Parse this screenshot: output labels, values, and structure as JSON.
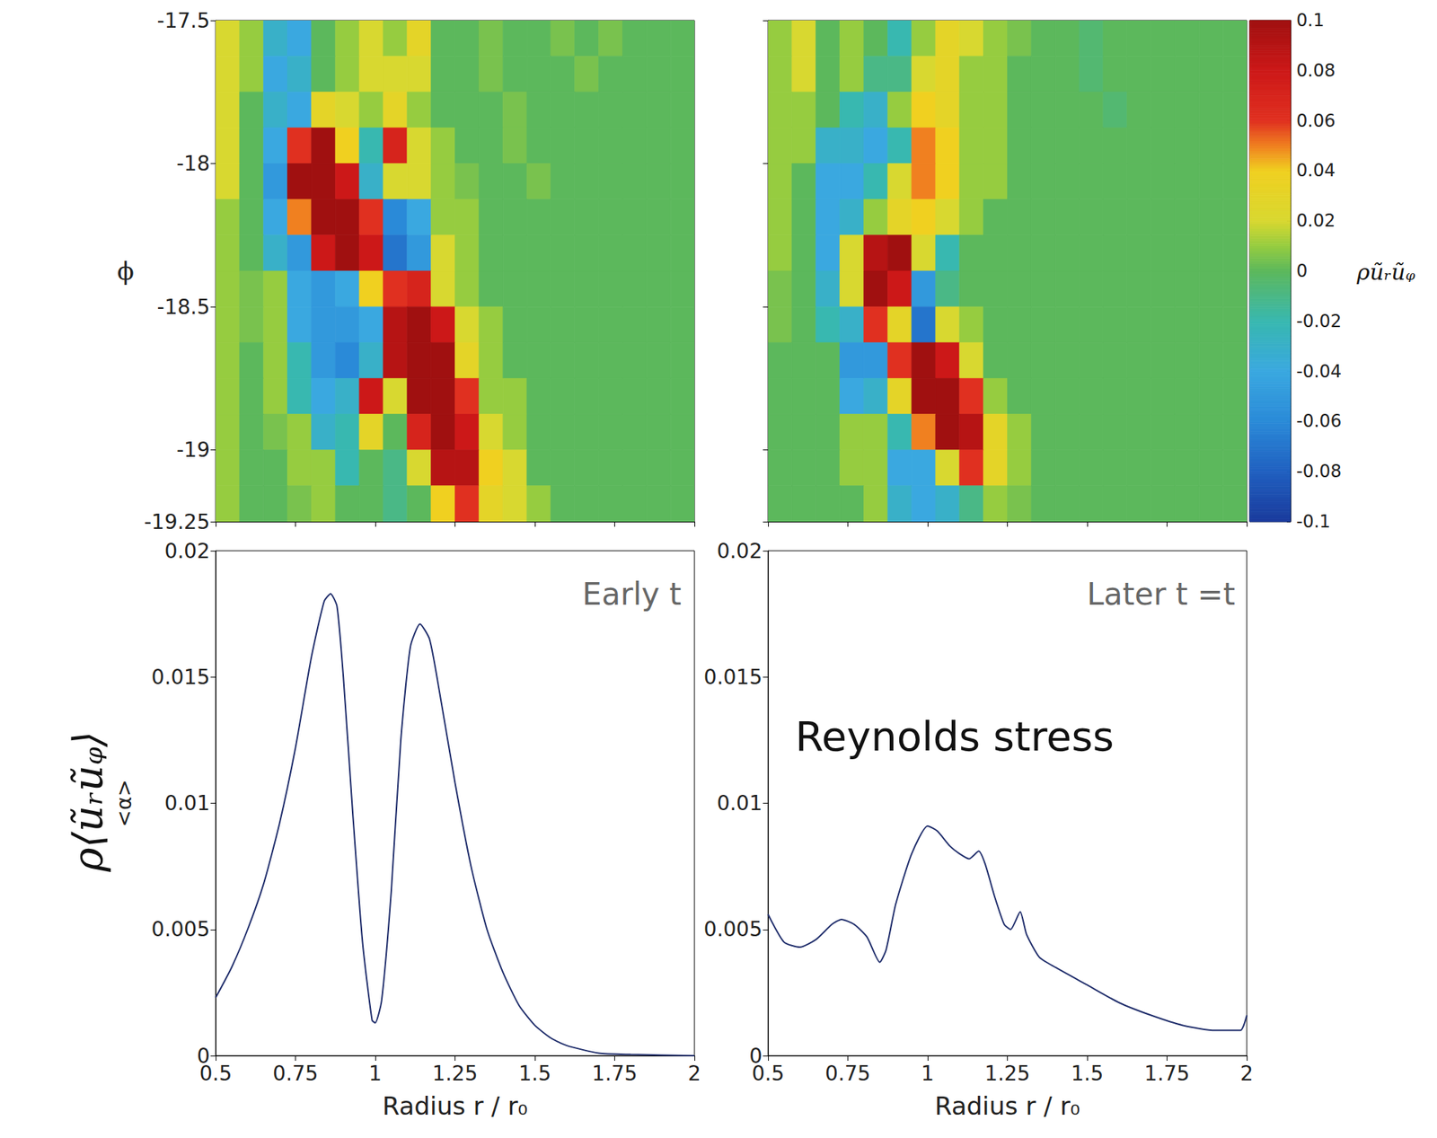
{
  "chart_data": [
    {
      "type": "heatmap",
      "ylabel": "ϕ",
      "tick_labels": "y",
      "xlim": [
        0.5,
        2
      ],
      "ylim": [
        -19.25,
        -17.5
      ],
      "xticks": [
        0.5,
        0.75,
        1,
        1.25,
        1.5,
        1.75,
        2
      ],
      "yticks": [
        -17.5,
        -18,
        -18.5,
        -19,
        -19.25
      ],
      "r_edges": [
        0.5,
        0.575,
        0.65,
        0.725,
        0.8,
        0.875,
        0.95,
        1.025,
        1.1,
        1.175,
        1.25,
        1.325,
        1.4,
        1.475,
        1.55,
        1.625,
        1.7,
        1.775,
        1.85,
        1.925,
        2.0
      ],
      "phi_edges": [
        -17.5,
        -17.625,
        -17.75,
        -17.875,
        -18,
        -18.125,
        -18.25,
        -18.375,
        -18.5,
        -18.625,
        -18.75,
        -18.875,
        -19,
        -19.125,
        -19.25
      ],
      "values": [
        [
          0.02,
          0.01,
          -0.03,
          -0.04,
          0,
          0.01,
          0.02,
          0.01,
          0.03,
          0,
          0,
          0.005,
          0,
          0,
          0.005,
          0,
          0.005,
          0,
          0,
          0
        ],
        [
          0.02,
          0.01,
          -0.04,
          -0.03,
          0,
          0.01,
          0.02,
          0.02,
          0.02,
          0,
          0,
          0.005,
          0,
          0,
          0,
          0.005,
          0,
          0,
          0,
          0
        ],
        [
          0.02,
          0,
          -0.03,
          -0.04,
          0.03,
          0.02,
          0.01,
          0.03,
          0.01,
          0,
          0,
          0,
          0.005,
          0,
          0,
          0,
          0,
          0,
          0,
          0
        ],
        [
          0.02,
          0,
          -0.04,
          0.06,
          0.1,
          0.04,
          -0.02,
          0.07,
          0.02,
          0.01,
          0,
          0,
          0.005,
          0,
          0,
          0,
          0,
          0,
          0,
          0
        ],
        [
          0.02,
          0,
          -0.05,
          0.1,
          0.1,
          0.08,
          -0.03,
          0.02,
          0.02,
          0.01,
          0.005,
          0,
          0,
          0.005,
          0,
          0,
          0,
          0,
          0,
          0
        ],
        [
          0.01,
          0,
          -0.04,
          0.05,
          0.1,
          0.1,
          0.06,
          -0.06,
          -0.04,
          0.01,
          0.01,
          0,
          0,
          0,
          0,
          0,
          0,
          0,
          0,
          0
        ],
        [
          0.01,
          0,
          -0.03,
          -0.05,
          0.08,
          0.1,
          0.08,
          -0.07,
          -0.05,
          0.02,
          0.01,
          0,
          0,
          0,
          0,
          0,
          0,
          0,
          0,
          0
        ],
        [
          0.01,
          0.005,
          0.01,
          -0.04,
          -0.05,
          -0.04,
          0.04,
          0.06,
          0.07,
          0.02,
          0.01,
          0,
          0,
          0,
          0,
          0,
          0,
          0,
          0,
          0
        ],
        [
          0.01,
          0.005,
          0.01,
          -0.04,
          -0.05,
          -0.05,
          -0.04,
          0.09,
          0.1,
          0.08,
          0.02,
          0.01,
          0,
          0,
          0,
          0,
          0,
          0,
          0,
          0
        ],
        [
          0.01,
          0,
          0.01,
          -0.02,
          -0.05,
          -0.06,
          -0.03,
          0.09,
          0.1,
          0.1,
          0.03,
          0.01,
          0,
          0,
          0,
          0,
          0,
          0,
          0,
          0
        ],
        [
          0.01,
          0,
          0.01,
          -0.02,
          -0.04,
          -0.03,
          0.08,
          0.02,
          0.1,
          0.1,
          0.06,
          0.01,
          0.01,
          0,
          0,
          0,
          0,
          0,
          0,
          0
        ],
        [
          0.01,
          0,
          0.005,
          0.01,
          -0.03,
          -0.02,
          0.03,
          0,
          0.07,
          0.1,
          0.08,
          0.02,
          0.01,
          0,
          0,
          0,
          0,
          0,
          0,
          0
        ],
        [
          0.01,
          0,
          0,
          0.01,
          0.01,
          -0.02,
          0,
          -0.01,
          0.02,
          0.09,
          0.09,
          0.04,
          0.02,
          0,
          0,
          0,
          0,
          0,
          0,
          0
        ],
        [
          0.01,
          0,
          0,
          0.005,
          0.01,
          0,
          0,
          -0.01,
          0,
          0.04,
          0.06,
          0.03,
          0.02,
          0.01,
          0,
          0,
          0,
          0,
          0,
          0
        ]
      ]
    },
    {
      "type": "heatmap",
      "tick_labels": false,
      "xlim": [
        0.5,
        2
      ],
      "ylim": [
        -19.25,
        -17.5
      ],
      "xticks": [
        0.5,
        0.75,
        1,
        1.25,
        1.5,
        1.75,
        2
      ],
      "yticks": [
        -17.5,
        -18,
        -18.5,
        -19,
        -19.25
      ],
      "r_edges": [
        0.5,
        0.575,
        0.65,
        0.725,
        0.8,
        0.875,
        0.95,
        1.025,
        1.1,
        1.175,
        1.25,
        1.325,
        1.4,
        1.475,
        1.55,
        1.625,
        1.7,
        1.775,
        1.85,
        1.925,
        2.0
      ],
      "phi_edges": [
        -17.5,
        -17.625,
        -17.75,
        -17.875,
        -18,
        -18.125,
        -18.25,
        -18.375,
        -18.5,
        -18.625,
        -18.75,
        -18.875,
        -19,
        -19.125,
        -19.25
      ],
      "values": [
        [
          0.01,
          0.02,
          0,
          0.01,
          0,
          -0.02,
          0.01,
          0.03,
          0.02,
          0.01,
          0.005,
          0,
          0,
          -0.005,
          0,
          0,
          0,
          0,
          0,
          0
        ],
        [
          0.01,
          0.02,
          0,
          0.01,
          -0.01,
          -0.01,
          0.02,
          0.03,
          0.01,
          0.01,
          0,
          0,
          0,
          -0.005,
          0,
          0,
          0,
          0,
          0,
          0
        ],
        [
          0.01,
          0.01,
          0,
          -0.02,
          -0.03,
          0.01,
          0.04,
          0.03,
          0.01,
          0.01,
          0,
          0,
          0,
          0,
          -0.005,
          0,
          0,
          0,
          0,
          0
        ],
        [
          0.01,
          0.01,
          -0.03,
          -0.03,
          -0.04,
          -0.02,
          0.05,
          0.04,
          0.01,
          0.01,
          0,
          0,
          0,
          0,
          0,
          0,
          0,
          0,
          0,
          0
        ],
        [
          0.01,
          0,
          -0.04,
          -0.04,
          -0.02,
          0.02,
          0.05,
          0.04,
          0.01,
          0.01,
          0,
          0,
          0,
          0,
          0,
          0,
          0,
          0,
          0,
          0
        ],
        [
          0.01,
          0,
          -0.04,
          -0.03,
          0.01,
          0.03,
          0.04,
          0.02,
          0.01,
          0,
          0,
          0,
          0,
          0,
          0,
          0,
          0,
          0,
          0,
          0
        ],
        [
          0.01,
          0,
          -0.04,
          0.02,
          0.09,
          0.1,
          0.02,
          -0.02,
          0,
          0,
          0,
          0,
          0,
          0,
          0,
          0,
          0,
          0,
          0,
          0
        ],
        [
          0.005,
          0,
          -0.03,
          0.02,
          0.1,
          0.08,
          -0.05,
          -0.01,
          0,
          0,
          0,
          0,
          0,
          0,
          0,
          0,
          0,
          0,
          0,
          0
        ],
        [
          0.005,
          0,
          -0.02,
          -0.03,
          0.06,
          0.03,
          -0.07,
          0.02,
          0.01,
          0,
          0,
          0,
          0,
          0,
          0,
          0,
          0,
          0,
          0,
          0
        ],
        [
          0,
          0,
          0,
          -0.05,
          -0.05,
          0.06,
          0.1,
          0.08,
          0.02,
          0,
          0,
          0,
          0,
          0,
          0,
          0,
          0,
          0,
          0,
          0
        ],
        [
          0,
          0,
          0,
          -0.04,
          -0.03,
          0.03,
          0.1,
          0.1,
          0.06,
          0.01,
          0,
          0,
          0,
          0,
          0,
          0,
          0,
          0,
          0,
          0
        ],
        [
          0,
          0,
          0,
          0.01,
          0.01,
          -0.02,
          0.05,
          0.1,
          0.09,
          0.03,
          0.01,
          0,
          0,
          0,
          0,
          0,
          0,
          0,
          0,
          0
        ],
        [
          0,
          0,
          0,
          0.01,
          0.01,
          -0.04,
          -0.04,
          0.02,
          0.06,
          0.03,
          0.01,
          0,
          0,
          0,
          0,
          0,
          0,
          0,
          0,
          0
        ],
        [
          0,
          0,
          0,
          0,
          0.01,
          -0.03,
          -0.04,
          -0.03,
          -0.01,
          0.01,
          0.005,
          0,
          0,
          0,
          0,
          0,
          0,
          0,
          0,
          0
        ]
      ],
      "colorbar": {
        "range": [
          -0.1,
          0.1
        ],
        "ticks": [
          0.1,
          0.08,
          0.06,
          0.04,
          0.02,
          0,
          -0.02,
          -0.04,
          -0.06,
          -0.08,
          -0.1
        ],
        "label": "ρũᵣũᵩ"
      }
    },
    {
      "type": "line",
      "xlabel": "Radius r / r₀",
      "ylabel": "<α>",
      "color": "#1f2d6b",
      "annotations": [
        "Early t",
        "ρ⟨ũᵣũᵩ⟩"
      ],
      "xlim": [
        0.5,
        2
      ],
      "ylim": [
        0,
        0.02
      ],
      "xticks": [
        0.5,
        0.75,
        1,
        1.25,
        1.5,
        1.75,
        2
      ],
      "yticks": [
        0,
        0.005,
        0.01,
        0.015,
        0.02
      ],
      "x": [
        0.5,
        0.55,
        0.6,
        0.65,
        0.7,
        0.75,
        0.8,
        0.84,
        0.86,
        0.88,
        0.9,
        0.93,
        0.96,
        0.99,
        1.0,
        1.02,
        1.05,
        1.08,
        1.11,
        1.14,
        1.17,
        1.2,
        1.25,
        1.3,
        1.35,
        1.4,
        1.45,
        1.5,
        1.55,
        1.6,
        1.7,
        1.8,
        2.0
      ],
      "values": [
        0.0023,
        0.0035,
        0.005,
        0.0068,
        0.0092,
        0.0122,
        0.0158,
        0.018,
        0.0183,
        0.0178,
        0.015,
        0.0095,
        0.0045,
        0.0014,
        0.0013,
        0.0022,
        0.0065,
        0.0125,
        0.0162,
        0.0171,
        0.0165,
        0.0145,
        0.0108,
        0.0075,
        0.005,
        0.0033,
        0.002,
        0.0012,
        0.0007,
        0.0004,
        0.0001,
        5e-05,
        0.0
      ]
    },
    {
      "type": "line",
      "xlabel": "Radius r / r₀",
      "color": "#1f2d6b",
      "annotations": [
        "Later t =t",
        "Reynolds stress"
      ],
      "xlim": [
        0.5,
        2
      ],
      "ylim": [
        0,
        0.02
      ],
      "xticks": [
        0.5,
        0.75,
        1,
        1.25,
        1.5,
        1.75,
        2
      ],
      "yticks": [
        0,
        0.005,
        0.01,
        0.015,
        0.02
      ],
      "x": [
        0.5,
        0.55,
        0.6,
        0.65,
        0.7,
        0.73,
        0.77,
        0.81,
        0.85,
        0.87,
        0.9,
        0.95,
        1.0,
        1.03,
        1.07,
        1.1,
        1.13,
        1.16,
        1.18,
        1.21,
        1.24,
        1.26,
        1.29,
        1.31,
        1.35,
        1.4,
        1.5,
        1.6,
        1.7,
        1.8,
        1.9,
        1.98,
        2.0
      ],
      "values": [
        0.0056,
        0.0045,
        0.0043,
        0.0046,
        0.0052,
        0.0054,
        0.0052,
        0.0047,
        0.0037,
        0.0042,
        0.006,
        0.008,
        0.0091,
        0.0089,
        0.0083,
        0.008,
        0.0078,
        0.0081,
        0.0076,
        0.0063,
        0.0052,
        0.005,
        0.0057,
        0.0048,
        0.0039,
        0.0035,
        0.0028,
        0.0021,
        0.0016,
        0.0012,
        0.001,
        0.001,
        0.0016
      ]
    }
  ]
}
